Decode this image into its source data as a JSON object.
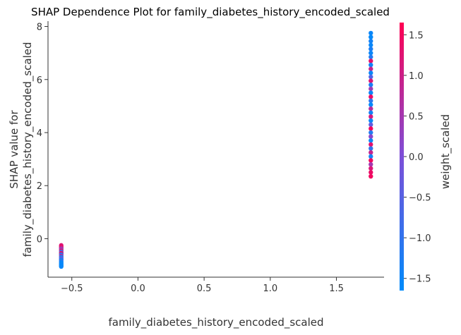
{
  "chart_data": {
    "type": "scatter",
    "title": "SHAP Dependence Plot for family_diabetes_history_encoded_scaled",
    "xlabel": "family_diabetes_history_encoded_scaled",
    "ylabel_lines": [
      "SHAP value for",
      "family_diabetes_history_encoded_scaled"
    ],
    "xlim": [
      -0.68,
      1.86
    ],
    "ylim": [
      -1.45,
      8.2
    ],
    "xticks": [
      -0.5,
      0.0,
      0.5,
      1.0,
      1.5
    ],
    "xtick_labels": [
      "−0.5",
      "0.0",
      "0.5",
      "1.0",
      "1.5"
    ],
    "yticks": [
      0,
      2,
      4,
      6,
      8
    ],
    "ytick_labels": [
      "0",
      "2",
      "4",
      "6",
      "8"
    ],
    "grid": false,
    "colorbar": {
      "label": "weight_scaled",
      "range": [
        -1.65,
        1.65
      ],
      "ticks": [
        -1.5,
        -1.0,
        -0.5,
        0.0,
        0.5,
        1.0,
        1.5
      ],
      "tick_labels": [
        "−1.5",
        "−1.0",
        "−0.5",
        "0.0",
        "0.5",
        "1.0",
        "1.5"
      ],
      "colormap": [
        "#008bfb",
        "#7d4fd8",
        "#ff0052"
      ]
    },
    "clusters": [
      {
        "x": -0.58,
        "points": [
          {
            "y": -0.25,
            "c": 1.2
          },
          {
            "y": -0.3,
            "c": 1.4
          },
          {
            "y": -0.35,
            "c": 0.9
          },
          {
            "y": -0.4,
            "c": 0.3
          },
          {
            "y": -0.45,
            "c": 1.1
          },
          {
            "y": -0.5,
            "c": -0.8
          },
          {
            "y": -0.55,
            "c": 1.5
          },
          {
            "y": -0.6,
            "c": -1.2
          },
          {
            "y": -0.65,
            "c": 0.6
          },
          {
            "y": -0.7,
            "c": -1.5
          },
          {
            "y": -0.75,
            "c": -0.2
          },
          {
            "y": -0.8,
            "c": -1.4
          },
          {
            "y": -0.85,
            "c": -1.1
          },
          {
            "y": -0.9,
            "c": -1.6
          },
          {
            "y": -0.95,
            "c": -1.5
          },
          {
            "y": -1.0,
            "c": -1.6
          },
          {
            "y": -1.05,
            "c": -1.55
          }
        ]
      },
      {
        "x": 1.76,
        "points": [
          {
            "y": 7.75,
            "c": -1.5
          },
          {
            "y": 7.6,
            "c": -1.6
          },
          {
            "y": 7.45,
            "c": -1.4
          },
          {
            "y": 7.3,
            "c": -1.55
          },
          {
            "y": 7.15,
            "c": -1.3
          },
          {
            "y": 7.0,
            "c": -1.5
          },
          {
            "y": 6.85,
            "c": -1.2
          },
          {
            "y": 6.7,
            "c": 1.3
          },
          {
            "y": 6.55,
            "c": -1.4
          },
          {
            "y": 6.4,
            "c": 0.9
          },
          {
            "y": 6.25,
            "c": -1.5
          },
          {
            "y": 6.1,
            "c": -0.6
          },
          {
            "y": 5.95,
            "c": 1.2
          },
          {
            "y": 5.8,
            "c": -1.3
          },
          {
            "y": 5.65,
            "c": 0.4
          },
          {
            "y": 5.5,
            "c": -1.5
          },
          {
            "y": 5.35,
            "c": 1.4
          },
          {
            "y": 5.2,
            "c": -1.1
          },
          {
            "y": 5.05,
            "c": -1.6
          },
          {
            "y": 4.9,
            "c": 0.7
          },
          {
            "y": 4.75,
            "c": -1.4
          },
          {
            "y": 4.6,
            "c": 1.1
          },
          {
            "y": 4.45,
            "c": -1.5
          },
          {
            "y": 4.3,
            "c": -0.4
          },
          {
            "y": 4.15,
            "c": 1.5
          },
          {
            "y": 4.0,
            "c": -1.2
          },
          {
            "y": 3.85,
            "c": 0.2
          },
          {
            "y": 3.7,
            "c": -1.5
          },
          {
            "y": 3.55,
            "c": 1.3
          },
          {
            "y": 3.4,
            "c": -1.0
          },
          {
            "y": 3.25,
            "c": 0.9
          },
          {
            "y": 3.1,
            "c": -1.4
          },
          {
            "y": 2.95,
            "c": 1.5
          },
          {
            "y": 2.8,
            "c": 0.5
          },
          {
            "y": 2.65,
            "c": 1.2
          },
          {
            "y": 2.5,
            "c": 1.4
          },
          {
            "y": 2.35,
            "c": 1.5
          }
        ]
      }
    ]
  }
}
